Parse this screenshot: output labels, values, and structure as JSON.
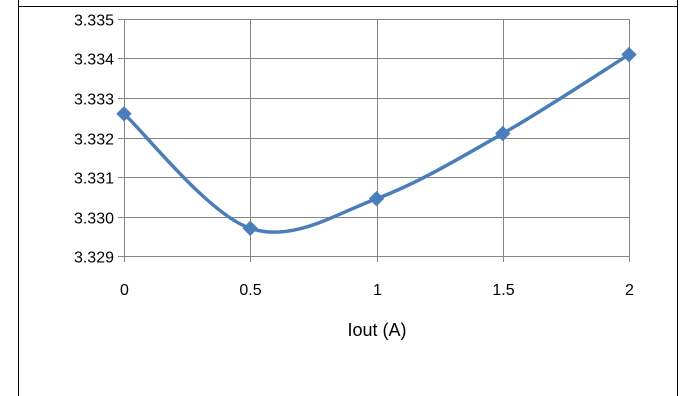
{
  "chart_data": {
    "type": "line",
    "title": "",
    "xlabel": "Iout (A)",
    "ylabel": "",
    "x": [
      0,
      0.5,
      1,
      1.5,
      2
    ],
    "series": [
      {
        "values": [
          3.3326,
          3.3297,
          3.33045,
          3.3321,
          3.3341
        ]
      }
    ],
    "xlim": [
      0,
      2
    ],
    "ylim": [
      3.329,
      3.335
    ],
    "x_ticks": [
      "0",
      "0.5",
      "1",
      "1.5",
      "2"
    ],
    "y_ticks": [
      "3.329",
      "3.330",
      "3.331",
      "3.332",
      "3.333",
      "3.334",
      "3.335"
    ],
    "grid": true,
    "legend": "none",
    "line_color": "#4A7EBB",
    "marker": "diamond"
  }
}
